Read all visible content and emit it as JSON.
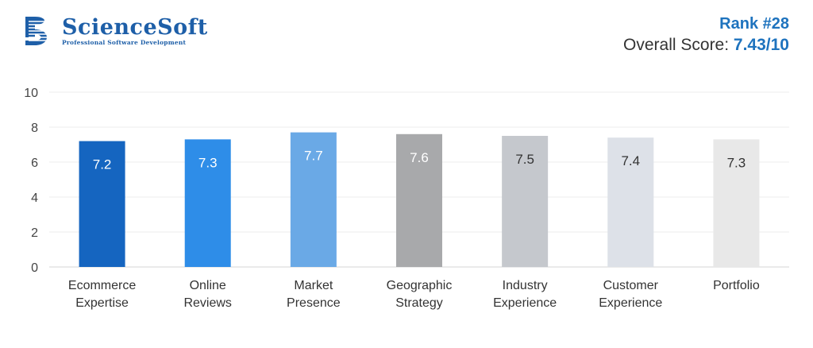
{
  "brand": {
    "name": "ScienceSoft",
    "tagline": "Professional Software Development",
    "color": "#1e5fa8"
  },
  "header": {
    "rank_label": "Rank #28",
    "score_prefix": "Overall Score:",
    "score_value": "7.43/10"
  },
  "chart_data": {
    "type": "bar",
    "title": "",
    "xlabel": "",
    "ylabel": "",
    "ylim": [
      0,
      10
    ],
    "yticks": [
      0,
      2,
      4,
      6,
      8,
      10
    ],
    "grid": true,
    "categories": [
      [
        "Ecommerce",
        "Expertise"
      ],
      [
        "Online",
        "Reviews"
      ],
      [
        "Market",
        "Presence"
      ],
      [
        "Geographic",
        "Strategy"
      ],
      [
        "Industry",
        "Experience"
      ],
      [
        "Customer",
        "Experience"
      ],
      [
        "Portfolio"
      ]
    ],
    "values": [
      7.2,
      7.3,
      7.7,
      7.6,
      7.5,
      7.4,
      7.3
    ],
    "colors": [
      "#1565c0",
      "#2e8de8",
      "#6aa9e6",
      "#a8a9ab",
      "#c5c8cd",
      "#dde1e8",
      "#e8e8e8"
    ],
    "label_colors": [
      "#ffffff",
      "#ffffff",
      "#ffffff",
      "#ffffff",
      "#333333",
      "#333333",
      "#333333"
    ]
  }
}
